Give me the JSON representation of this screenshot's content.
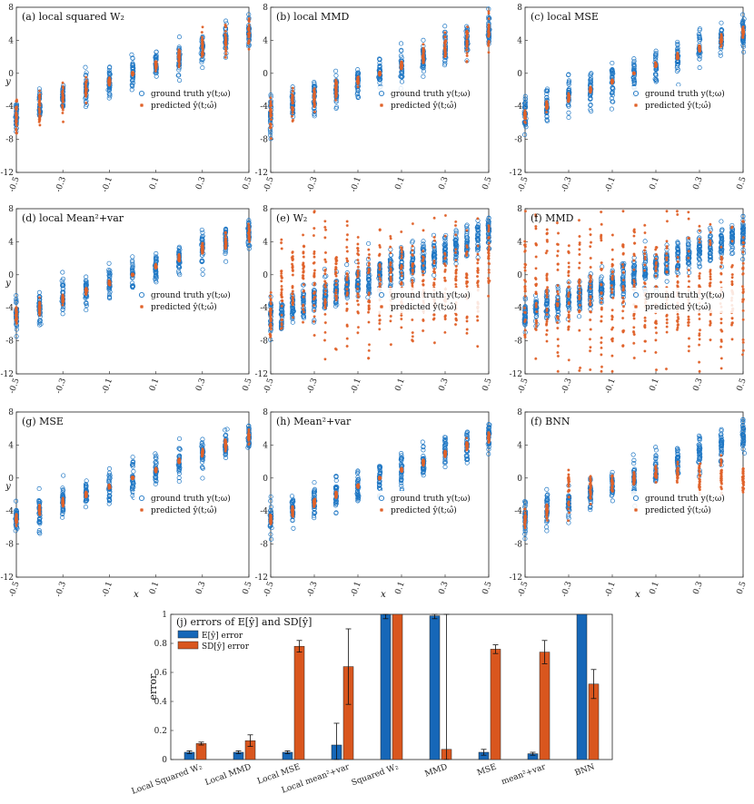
{
  "figure_title": "",
  "colors": {
    "truth": "#1f77c4",
    "pred": "#e0622a",
    "bar_blue": "#1667b8",
    "bar_orange": "#d9561e",
    "axis": "#222222"
  },
  "scatter_common": {
    "x_ticks": [
      "-0.5",
      "-0.3",
      "-0.1",
      "0.1",
      "0.3",
      "0.5"
    ],
    "x_tick_values": [
      -0.5,
      -0.3,
      -0.1,
      0.1,
      0.3,
      0.5
    ],
    "y_ticks": [
      "8",
      "4",
      "0",
      "-4",
      "-8",
      "-12"
    ],
    "y_tick_values": [
      8,
      4,
      0,
      -4,
      -8,
      -12
    ],
    "ylabel": "y",
    "xlabel": "x",
    "legend_truth": "ground truth y(t;ω)",
    "legend_pred": "predicted ŷ(t;ω̂)"
  },
  "chart_data": [
    {
      "type": "scatter",
      "title": "(a) local squared W₂",
      "x": [
        -0.5,
        -0.4,
        -0.3,
        -0.2,
        -0.1,
        0.0,
        0.1,
        0.2,
        0.3,
        0.4,
        0.5
      ],
      "truth_mean": [
        -5,
        -4,
        -3,
        -2,
        -1,
        0,
        1,
        2,
        3,
        4,
        5
      ],
      "pred_mean": [
        -5,
        -4,
        -3,
        -2,
        -1,
        0,
        1,
        2,
        3,
        4,
        5
      ],
      "pred_spread": [
        2.0,
        1.8,
        1.5,
        1.0,
        0.5,
        0.2,
        0.5,
        1.0,
        1.5,
        1.8,
        2.0
      ],
      "xlim": [
        -0.5,
        0.5
      ],
      "ylim": [
        -12,
        8
      ]
    },
    {
      "type": "scatter",
      "title": "(b) local MMD",
      "x": [
        -0.5,
        -0.4,
        -0.3,
        -0.2,
        -0.1,
        0.0,
        0.1,
        0.2,
        0.3,
        0.4,
        0.5
      ],
      "truth_mean": [
        -5,
        -4,
        -3,
        -2,
        -1,
        0,
        1,
        2,
        3,
        4,
        5
      ],
      "pred_mean": [
        -5,
        -4,
        -3,
        -2,
        -1,
        0,
        1,
        2,
        3,
        4,
        5
      ],
      "pred_spread": [
        2.0,
        1.8,
        1.5,
        1.0,
        0.4,
        0.2,
        0.4,
        1.0,
        1.5,
        1.8,
        2.0
      ],
      "xlim": [
        -0.5,
        0.5
      ],
      "ylim": [
        -12,
        8
      ]
    },
    {
      "type": "scatter",
      "title": "(c) local MSE",
      "x": [
        -0.5,
        -0.4,
        -0.3,
        -0.2,
        -0.1,
        0.0,
        0.1,
        0.2,
        0.3,
        0.4,
        0.5
      ],
      "truth_mean": [
        -5,
        -4,
        -3,
        -2,
        -1,
        0,
        1,
        2,
        3,
        4,
        5
      ],
      "pred_mean": [
        -5,
        -4,
        -3,
        -2,
        -1,
        0,
        1,
        2,
        3,
        4,
        5
      ],
      "pred_spread": [
        0.6,
        0.5,
        0.4,
        0.3,
        0.2,
        0.1,
        0.2,
        0.3,
        0.4,
        0.5,
        0.6
      ],
      "xlim": [
        -0.5,
        0.5
      ],
      "ylim": [
        -12,
        8
      ]
    },
    {
      "type": "scatter",
      "title": "(d) local Mean²+var",
      "x": [
        -0.5,
        -0.4,
        -0.3,
        -0.2,
        -0.1,
        0.0,
        0.1,
        0.2,
        0.3,
        0.4,
        0.5
      ],
      "truth_mean": [
        -5,
        -4,
        -3,
        -2,
        -1,
        0,
        1,
        2,
        3,
        4,
        5
      ],
      "pred_mean": [
        -5,
        -4,
        -3,
        -2,
        -1,
        0,
        1,
        2,
        3,
        4,
        5
      ],
      "pred_spread": [
        0.9,
        0.8,
        0.6,
        0.4,
        0.2,
        0.1,
        0.2,
        0.4,
        0.6,
        0.8,
        0.9
      ],
      "xlim": [
        -0.5,
        0.5
      ],
      "ylim": [
        -12,
        8
      ]
    },
    {
      "type": "scatter",
      "title": "(e) W₂",
      "x": [
        -0.5,
        -0.45,
        -0.4,
        -0.35,
        -0.3,
        -0.25,
        -0.2,
        -0.15,
        -0.1,
        -0.05,
        0.0,
        0.05,
        0.1,
        0.15,
        0.2,
        0.25,
        0.3,
        0.35,
        0.4,
        0.45,
        0.5
      ],
      "truth_mean": [
        -5,
        -4.5,
        -4,
        -3.5,
        -3,
        -2.5,
        -2,
        -1.5,
        -1,
        -0.5,
        0,
        0.5,
        1,
        1.5,
        2,
        2.5,
        3,
        3.5,
        4,
        4.5,
        5
      ],
      "pred_mean": [
        -5,
        -1,
        -1,
        -1,
        -1,
        -1,
        -1,
        -1,
        -1,
        -1,
        -1,
        -1,
        -1,
        -1,
        -1,
        -1,
        -1,
        -1,
        -1,
        -1,
        2
      ],
      "pred_spread": [
        3,
        6,
        6,
        6,
        6,
        6,
        6,
        6,
        6,
        6,
        6,
        6,
        6,
        6,
        6,
        6,
        6,
        6,
        6,
        6,
        4
      ],
      "xlim": [
        -0.5,
        0.5
      ],
      "ylim": [
        -12,
        8
      ]
    },
    {
      "type": "scatter",
      "title": "(f) MMD",
      "x": [
        -0.5,
        -0.45,
        -0.4,
        -0.35,
        -0.3,
        -0.25,
        -0.2,
        -0.15,
        -0.1,
        -0.05,
        0.0,
        0.05,
        0.1,
        0.15,
        0.2,
        0.25,
        0.3,
        0.35,
        0.4,
        0.45,
        0.5
      ],
      "truth_mean": [
        -5,
        -4.5,
        -4,
        -3.5,
        -3,
        -2.5,
        -2,
        -1.5,
        -1,
        -0.5,
        0,
        0.5,
        1,
        1.5,
        2,
        2.5,
        3,
        3.5,
        4,
        4.5,
        5
      ],
      "pred_mean": [
        -2,
        -2,
        -2,
        -2,
        -2,
        -2,
        -2,
        -2,
        -2,
        -2,
        -2,
        -2,
        -2,
        -2,
        -2,
        -2,
        -2,
        -2,
        -2,
        -2,
        -2
      ],
      "pred_spread": [
        8,
        8,
        8,
        8,
        8,
        8,
        8,
        8,
        8,
        8,
        8,
        8,
        8,
        8,
        8,
        8,
        8,
        8,
        8,
        8,
        8
      ],
      "xlim": [
        -0.5,
        0.5
      ],
      "ylim": [
        -12,
        8
      ]
    },
    {
      "type": "scatter",
      "title": "(g) MSE",
      "x": [
        -0.5,
        -0.4,
        -0.3,
        -0.2,
        -0.1,
        0.0,
        0.1,
        0.2,
        0.3,
        0.4,
        0.5
      ],
      "truth_mean": [
        -5,
        -4,
        -3,
        -2,
        -1,
        0,
        1,
        2,
        3,
        4,
        5
      ],
      "pred_mean": [
        -5,
        -4,
        -3,
        -2,
        -1,
        0,
        1,
        2,
        3,
        4,
        5
      ],
      "pred_spread": [
        0.6,
        0.5,
        0.4,
        0.3,
        0.2,
        0.1,
        0.2,
        0.3,
        0.4,
        0.5,
        0.6
      ],
      "xlim": [
        -0.5,
        0.5
      ],
      "ylim": [
        -12,
        8
      ]
    },
    {
      "type": "scatter",
      "title": "(h) Mean²+var",
      "x": [
        -0.5,
        -0.4,
        -0.3,
        -0.2,
        -0.1,
        0.0,
        0.1,
        0.2,
        0.3,
        0.4,
        0.5
      ],
      "truth_mean": [
        -5,
        -4,
        -3,
        -2,
        -1,
        0,
        1,
        2,
        3,
        4,
        5
      ],
      "pred_mean": [
        -5,
        -4,
        -3,
        -2,
        -1,
        0,
        1,
        2,
        3,
        4,
        5
      ],
      "pred_spread": [
        0.6,
        0.5,
        0.4,
        0.3,
        0.2,
        0.1,
        0.2,
        0.3,
        0.4,
        0.5,
        0.6
      ],
      "xlim": [
        -0.5,
        0.5
      ],
      "ylim": [
        -12,
        8
      ]
    },
    {
      "type": "scatter",
      "title": "(f) BNN",
      "x": [
        -0.5,
        -0.4,
        -0.3,
        -0.2,
        -0.1,
        0.0,
        0.1,
        0.2,
        0.3,
        0.4,
        0.5
      ],
      "truth_mean": [
        -5,
        -4,
        -3,
        -2,
        -1,
        0,
        1,
        2,
        3,
        4,
        5
      ],
      "pred_mean": [
        -5,
        -4,
        -1.5,
        -1,
        -0.5,
        0,
        0.5,
        0.5,
        0,
        0,
        0
      ],
      "pred_spread": [
        0.8,
        0.8,
        2.0,
        1.5,
        1.0,
        0.8,
        0.8,
        1.0,
        2.0,
        2.0,
        1.5
      ],
      "xlim": [
        -0.5,
        0.5
      ],
      "ylim": [
        -12,
        8
      ]
    },
    {
      "type": "bar",
      "title": "(j) errors of E[ŷ] and SD[ŷ]",
      "ylabel": "error",
      "ylim": [
        0,
        1
      ],
      "y_ticks": [
        "0",
        "0.2",
        "0.4",
        "0.6",
        "0.8",
        "1"
      ],
      "y_tick_values": [
        0,
        0.2,
        0.4,
        0.6,
        0.8,
        1
      ],
      "categories": [
        "Local Squared W₂",
        "Local MMD",
        "Local MSE",
        "Local mean²+var",
        "Squared W₂",
        "MMD",
        "MSE",
        "mean²+var",
        "BNN"
      ],
      "series": [
        {
          "name": "E[ŷ] error",
          "values": [
            0.05,
            0.05,
            0.05,
            0.1,
            1.0,
            0.99,
            0.05,
            0.04,
            1.0
          ],
          "errors": [
            0.01,
            0.01,
            0.01,
            0.15,
            0.03,
            0.02,
            0.02,
            0.01,
            0.0
          ]
        },
        {
          "name": "SD[ŷ] error",
          "values": [
            0.11,
            0.13,
            0.78,
            0.64,
            1.0,
            0.07,
            0.76,
            0.74,
            0.52
          ],
          "errors": [
            0.01,
            0.04,
            0.04,
            0.26,
            0.0,
            1.0,
            0.03,
            0.08,
            0.1
          ]
        }
      ]
    }
  ]
}
